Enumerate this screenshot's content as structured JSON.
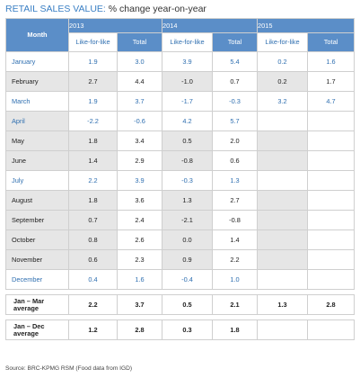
{
  "title": {
    "lead": "RETAIL SALES VALUE:",
    "rest": " % change year-on-year"
  },
  "table": {
    "month_header": "Month",
    "years": [
      "2013",
      "2014",
      "2015"
    ],
    "subheaders": [
      "Like-for-like",
      "Total",
      "Like-for-like",
      "Total",
      "Like-for-like",
      "Total"
    ],
    "rows": [
      {
        "month": "January",
        "values": [
          "1.9",
          "3.0",
          "3.9",
          "5.4",
          "0.2",
          "1.6"
        ]
      },
      {
        "month": "February",
        "values": [
          "2.7",
          "4.4",
          "-1.0",
          "0.7",
          "0.2",
          "1.7"
        ]
      },
      {
        "month": "March",
        "values": [
          "1.9",
          "3.7",
          "-1.7",
          "-0.3",
          "3.2",
          "4.7"
        ]
      },
      {
        "month": "April",
        "values": [
          "-2.2",
          "-0.6",
          "4.2",
          "5.7",
          "",
          ""
        ]
      },
      {
        "month": "May",
        "values": [
          "1.8",
          "3.4",
          "0.5",
          "2.0",
          "",
          ""
        ]
      },
      {
        "month": "June",
        "values": [
          "1.4",
          "2.9",
          "-0.8",
          "0.6",
          "",
          ""
        ]
      },
      {
        "month": "July",
        "values": [
          "2.2",
          "3.9",
          "-0.3",
          "1.3",
          "",
          ""
        ]
      },
      {
        "month": "August",
        "values": [
          "1.8",
          "3.6",
          "1.3",
          "2.7",
          "",
          ""
        ]
      },
      {
        "month": "September",
        "values": [
          "0.7",
          "2.4",
          "-2.1",
          "-0.8",
          "",
          ""
        ]
      },
      {
        "month": "October",
        "values": [
          "0.8",
          "2.6",
          "0.0",
          "1.4",
          "",
          ""
        ]
      },
      {
        "month": "November",
        "values": [
          "0.6",
          "2.3",
          "0.9",
          "2.2",
          "",
          ""
        ]
      },
      {
        "month": "December",
        "values": [
          "0.4",
          "1.6",
          "-0.4",
          "1.0",
          "",
          ""
        ]
      }
    ],
    "averages": [
      {
        "label": "Jan – Mar average",
        "values": [
          "2.2",
          "3.7",
          "0.5",
          "2.1",
          "1.3",
          "2.8"
        ]
      },
      {
        "label": "Jan – Dec average",
        "values": [
          "1.2",
          "2.8",
          "0.3",
          "1.8",
          "",
          ""
        ]
      }
    ]
  },
  "source": "Source: BRC-KPMG RSM (Food data from IGD)",
  "colors": {
    "header_blue": "#5b8ec8",
    "text_blue": "#2f6fb0",
    "stripe_gray": "#e6e6e6"
  }
}
